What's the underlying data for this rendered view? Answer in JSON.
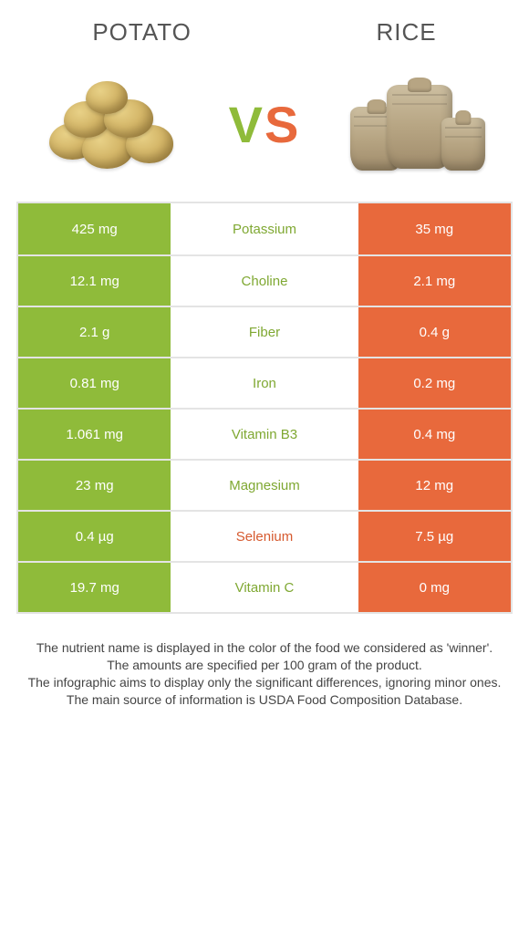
{
  "colors": {
    "green": "#8fbb3a",
    "orange": "#e8693c",
    "green_text": "#7fa832",
    "orange_text": "#d65a2f",
    "row_border": "#e4e4e4"
  },
  "header": {
    "left": "Potato",
    "right": "Rice",
    "vs_v": "V",
    "vs_s": "S"
  },
  "rows": [
    {
      "left": "425 mg",
      "name": "Potassium",
      "right": "35 mg",
      "winner": "left"
    },
    {
      "left": "12.1 mg",
      "name": "Choline",
      "right": "2.1 mg",
      "winner": "left"
    },
    {
      "left": "2.1 g",
      "name": "Fiber",
      "right": "0.4 g",
      "winner": "left"
    },
    {
      "left": "0.81 mg",
      "name": "Iron",
      "right": "0.2 mg",
      "winner": "left"
    },
    {
      "left": "1.061 mg",
      "name": "Vitamin B3",
      "right": "0.4 mg",
      "winner": "left"
    },
    {
      "left": "23 mg",
      "name": "Magnesium",
      "right": "12 mg",
      "winner": "left"
    },
    {
      "left": "0.4 µg",
      "name": "Selenium",
      "right": "7.5 µg",
      "winner": "right"
    },
    {
      "left": "19.7 mg",
      "name": "Vitamin C",
      "right": "0 mg",
      "winner": "left"
    }
  ],
  "footer": [
    "The nutrient name is displayed in the color of the food we considered as 'winner'.",
    "The amounts are specified per 100 gram of the product.",
    "The infographic aims to display only the significant differences, ignoring minor ones.",
    "The main source of information is USDA Food Composition Database."
  ]
}
